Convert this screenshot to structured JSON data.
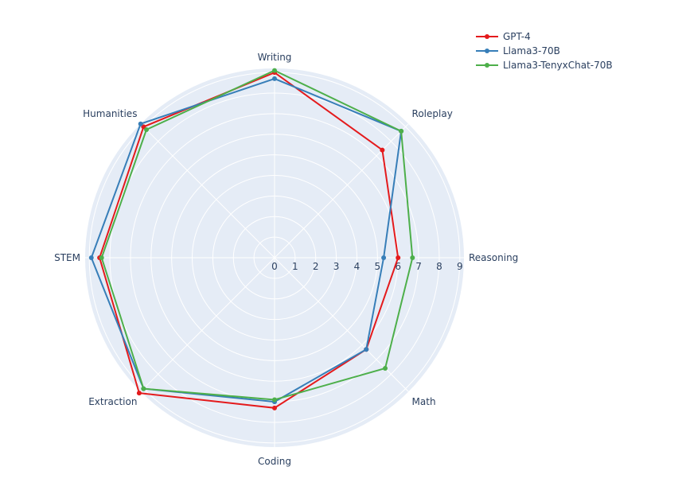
{
  "chart_data": {
    "type": "radar",
    "title": "",
    "categories": [
      "Writing",
      "Roleplay",
      "Reasoning",
      "Math",
      "Coding",
      "Extraction",
      "STEM",
      "Humanities"
    ],
    "radial_range": [
      0,
      9.2
    ],
    "radial_ticks": [
      "0",
      "1",
      "2",
      "3",
      "4",
      "5",
      "6",
      "7",
      "8",
      "9"
    ],
    "grid": true,
    "legend_position": "top-right",
    "series": [
      {
        "name": "GPT-4",
        "color": "#e41a1c",
        "values": [
          9.0,
          7.4,
          6.0,
          6.3,
          7.3,
          9.3,
          8.5,
          9.0
        ]
      },
      {
        "name": "Llama3-70B",
        "color": "#377eb8",
        "values": [
          8.7,
          8.7,
          5.3,
          6.3,
          7.0,
          9.0,
          8.9,
          9.2
        ]
      },
      {
        "name": "Llama3-TenyxChat-70B",
        "color": "#4daf4a",
        "values": [
          9.1,
          8.7,
          6.7,
          7.6,
          6.9,
          9.0,
          8.4,
          8.8
        ]
      }
    ]
  }
}
